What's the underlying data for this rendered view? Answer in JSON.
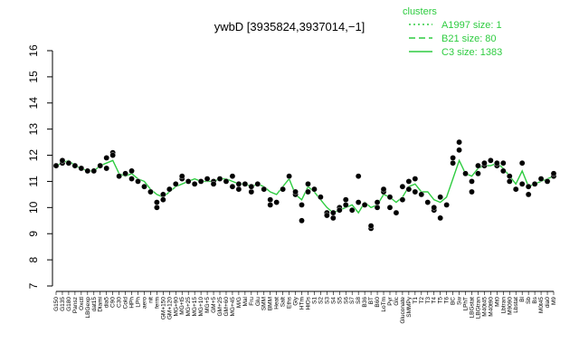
{
  "chart_data": {
    "type": "line",
    "title": "ywbD [3935824,3937014,−1]",
    "xlabel": "",
    "ylabel": "",
    "ylim": [
      7,
      16
    ],
    "yticks": [
      7,
      8,
      9,
      10,
      11,
      12,
      13,
      14,
      15,
      16
    ],
    "grid": false,
    "legend_position": "top-right",
    "legend": {
      "title": "clusters",
      "entries": [
        {
          "label": "A1997 size: 1",
          "style": "dotted"
        },
        {
          "label": "B21 size: 80",
          "style": "dashed"
        },
        {
          "label": "C3 size: 1383",
          "style": "solid"
        }
      ]
    },
    "colors": {
      "line": "#2ecc40",
      "points": "#000000"
    },
    "categories": [
      "G150",
      "G135",
      "G180",
      "Pansz",
      "Oxctl",
      "LBGexp",
      "dat15",
      "Diami",
      "dia5",
      "C90",
      "C30",
      "Cold",
      "HPh",
      "LPh",
      "aero",
      "nit",
      "ferm",
      "GM+150",
      "GM+120",
      "MG+90",
      "MG+t5",
      "MG+25",
      "MG+15",
      "MG+10",
      "MG+5",
      "GM+5",
      "GM+25",
      "GM+60",
      "MG+45",
      "M/G",
      "Mal",
      "Fru",
      "Glu",
      "SMM",
      "BMM",
      "Heat",
      "Salt",
      "Eths",
      "Gly",
      "HTm",
      "HiOs",
      "S1",
      "S2",
      "S3",
      "S4",
      "S5",
      "S6",
      "S7",
      "S8",
      "B36",
      "BT",
      "B60",
      "LoTm",
      "Pyr",
      "Glc",
      "Gluconate",
      "SMMPy",
      "T1",
      "T2",
      "T3",
      "T4",
      "T5",
      "T6",
      "BC",
      "Sw",
      "LPhT",
      "LBGstat",
      "LBGtran",
      "M40t45",
      "M40t90",
      "Mt0",
      "Lbtran",
      "M9090",
      "Lbstat",
      "Bl",
      "Sb",
      "Bs",
      "M0t45",
      "dia0",
      "M9"
    ],
    "x_tick_labels": [
      "G150",
      "G135",
      "G180",
      "Pansz",
      "Oxctl",
      "LBGexp",
      "dat15",
      "Diami",
      "dia5",
      "C90",
      "C30",
      "Cold",
      "HPh",
      "LPh",
      "aero",
      "nit",
      "ferm",
      "GM+150",
      "GM+120",
      "MG+90",
      "MG+t5",
      "MG+25",
      "MG+15",
      "MG+10",
      "MG+5",
      "GM+5",
      "GM+25",
      "GM+60",
      "MG+45",
      "M/G",
      "Mal",
      "Fru",
      "Glu",
      "SMM",
      "BMM",
      "Heat",
      "Salt",
      "Eths",
      "Gly",
      "HTm",
      "HiOs",
      "S1",
      "S2",
      "S3",
      "S4",
      "S5",
      "S6",
      "S7",
      "S8",
      "B36",
      "BT",
      "B60",
      "LoTm",
      "Pyr",
      "Glc",
      "Gluconate",
      "SMMPy",
      "T1",
      "T2",
      "T3",
      "T4",
      "T5",
      "T6",
      "BC",
      "Sw",
      "LPhT",
      "LBGstat",
      "LBGtran",
      "M40t45",
      "M40t90",
      "Mt0",
      "Lbtran",
      "M9090",
      "Lbstat",
      "Bl",
      "Sb",
      "Bs",
      "M0t45",
      "dia0",
      "M9"
    ],
    "series": [
      {
        "style": "solid",
        "values": [
          11.6,
          11.7,
          11.8,
          11.6,
          11.5,
          11.4,
          11.4,
          11.6,
          11.7,
          11.8,
          11.3,
          11.2,
          11.3,
          11.1,
          11.0,
          10.7,
          10.5,
          10.4,
          10.6,
          10.8,
          10.9,
          11.0,
          11.1,
          11.0,
          11.0,
          11.0,
          11.1,
          11.1,
          11.0,
          10.9,
          10.9,
          10.8,
          10.9,
          10.8,
          10.6,
          10.5,
          10.8,
          11.1,
          10.5,
          10.3,
          10.8,
          10.6,
          10.3,
          10.0,
          9.8,
          9.9,
          10.0,
          10.1,
          9.8,
          10.2,
          10.0,
          10.1,
          10.5,
          10.4,
          10.2,
          10.4,
          10.8,
          10.9,
          10.6,
          10.6,
          10.3,
          10.2,
          10.4,
          11.1,
          11.8,
          11.3,
          11.2,
          11.5,
          11.6,
          11.6,
          11.7,
          11.5,
          11.2,
          10.9,
          11.4,
          10.8,
          10.9,
          11.0,
          11.1,
          11.2
        ]
      }
    ],
    "points": [
      [
        0,
        11.6
      ],
      [
        1,
        11.7
      ],
      [
        1,
        11.8
      ],
      [
        2,
        11.7
      ],
      [
        3,
        11.6
      ],
      [
        4,
        11.5
      ],
      [
        5,
        11.4
      ],
      [
        6,
        11.4
      ],
      [
        7,
        11.6
      ],
      [
        8,
        11.5
      ],
      [
        8,
        11.9
      ],
      [
        9,
        12.1
      ],
      [
        9,
        12.0
      ],
      [
        10,
        11.2
      ],
      [
        11,
        11.3
      ],
      [
        12,
        11.4
      ],
      [
        12,
        11.1
      ],
      [
        13,
        11.0
      ],
      [
        14,
        10.8
      ],
      [
        15,
        10.6
      ],
      [
        16,
        10.0
      ],
      [
        16,
        10.2
      ],
      [
        17,
        10.5
      ],
      [
        17,
        10.3
      ],
      [
        18,
        10.7
      ],
      [
        19,
        10.9
      ],
      [
        20,
        11.1
      ],
      [
        20,
        11.2
      ],
      [
        21,
        11.0
      ],
      [
        22,
        10.9
      ],
      [
        23,
        11.0
      ],
      [
        24,
        11.1
      ],
      [
        25,
        11.0
      ],
      [
        25,
        10.9
      ],
      [
        26,
        11.1
      ],
      [
        27,
        11.0
      ],
      [
        28,
        10.8
      ],
      [
        28,
        11.2
      ],
      [
        29,
        10.9
      ],
      [
        29,
        10.7
      ],
      [
        30,
        10.9
      ],
      [
        31,
        10.6
      ],
      [
        31,
        10.8
      ],
      [
        32,
        10.9
      ],
      [
        33,
        10.7
      ],
      [
        34,
        10.3
      ],
      [
        34,
        10.1
      ],
      [
        35,
        10.2
      ],
      [
        36,
        10.7
      ],
      [
        37,
        11.2
      ],
      [
        38,
        10.5
      ],
      [
        38,
        10.6
      ],
      [
        39,
        9.5
      ],
      [
        39,
        10.1
      ],
      [
        40,
        10.9
      ],
      [
        40,
        10.6
      ],
      [
        41,
        10.7
      ],
      [
        42,
        10.4
      ],
      [
        43,
        9.8
      ],
      [
        43,
        9.7
      ],
      [
        44,
        9.6
      ],
      [
        44,
        9.8
      ],
      [
        45,
        10.0
      ],
      [
        45,
        9.9
      ],
      [
        46,
        10.3
      ],
      [
        46,
        10.1
      ],
      [
        47,
        9.9
      ],
      [
        48,
        11.2
      ],
      [
        48,
        10.2
      ],
      [
        49,
        10.1
      ],
      [
        50,
        9.2
      ],
      [
        50,
        9.3
      ],
      [
        51,
        10.0
      ],
      [
        51,
        10.2
      ],
      [
        52,
        10.6
      ],
      [
        52,
        10.7
      ],
      [
        53,
        10.4
      ],
      [
        53,
        10.0
      ],
      [
        54,
        9.8
      ],
      [
        55,
        10.3
      ],
      [
        55,
        10.8
      ],
      [
        56,
        10.7
      ],
      [
        56,
        11.0
      ],
      [
        57,
        11.1
      ],
      [
        57,
        10.6
      ],
      [
        58,
        10.5
      ],
      [
        59,
        10.2
      ],
      [
        60,
        9.9
      ],
      [
        60,
        10.0
      ],
      [
        61,
        9.6
      ],
      [
        61,
        10.4
      ],
      [
        62,
        10.1
      ],
      [
        63,
        11.9
      ],
      [
        63,
        11.7
      ],
      [
        64,
        12.5
      ],
      [
        64,
        12.2
      ],
      [
        65,
        11.3
      ],
      [
        66,
        10.6
      ],
      [
        66,
        11.0
      ],
      [
        67,
        11.3
      ],
      [
        68,
        11.6
      ],
      [
        68,
        11.7
      ],
      [
        69,
        11.8
      ],
      [
        70,
        11.6
      ],
      [
        70,
        11.7
      ],
      [
        71,
        11.4
      ],
      [
        72,
        11.2
      ],
      [
        72,
        11.0
      ],
      [
        73,
        10.7
      ],
      [
        74,
        11.7
      ],
      [
        74,
        10.9
      ],
      [
        75,
        10.5
      ],
      [
        75,
        10.8
      ],
      [
        76,
        10.9
      ],
      [
        77,
        11.1
      ],
      [
        78,
        11.0
      ],
      [
        79,
        11.2
      ],
      [
        79,
        11.3
      ],
      [
        67,
        11.6
      ],
      [
        71,
        11.7
      ]
    ]
  }
}
